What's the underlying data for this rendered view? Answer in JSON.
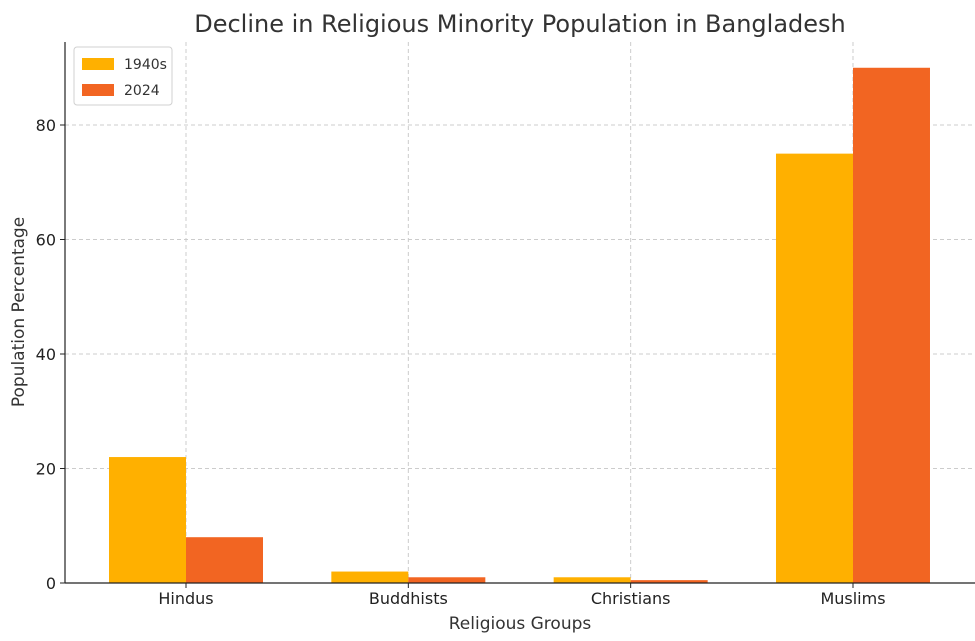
{
  "chart_data": {
    "type": "bar",
    "title": "Decline in Religious Minority Population in Bangladesh",
    "xlabel": "Religious Groups",
    "ylabel": "Population Percentage",
    "categories": [
      "Hindus",
      "Buddhists",
      "Christians",
      "Muslims"
    ],
    "series": [
      {
        "name": "1940s",
        "values": [
          22,
          2,
          1,
          75
        ],
        "color": "#FFB000"
      },
      {
        "name": "2024",
        "values": [
          8,
          1,
          0.5,
          90
        ],
        "color": "#F26522"
      }
    ],
    "ylim": [
      0,
      94.5
    ],
    "yticks": [
      0,
      20,
      40,
      60,
      80
    ],
    "grid": true,
    "legend": "top-left"
  }
}
